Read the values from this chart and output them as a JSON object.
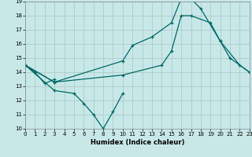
{
  "xlabel": "Humidex (Indice chaleur)",
  "background_color": "#c8e8e8",
  "grid_color": "#b0d0d0",
  "line_color": "#006868",
  "xlim": [
    0,
    23
  ],
  "ylim": [
    10,
    19
  ],
  "yticks": [
    10,
    11,
    12,
    13,
    14,
    15,
    16,
    17,
    18,
    19
  ],
  "xticks": [
    0,
    1,
    2,
    3,
    4,
    5,
    6,
    7,
    8,
    9,
    10,
    11,
    12,
    13,
    14,
    15,
    16,
    17,
    18,
    19,
    20,
    21,
    22,
    23
  ],
  "series": [
    {
      "x": [
        0,
        1,
        2,
        3
      ],
      "y": [
        14.5,
        14.0,
        13.2,
        13.5
      ]
    },
    {
      "x": [
        0,
        3,
        5,
        6,
        7,
        8,
        9,
        10
      ],
      "y": [
        14.5,
        12.7,
        12.5,
        11.8,
        11.0,
        10.0,
        11.2,
        12.5
      ]
    },
    {
      "x": [
        0,
        3,
        10,
        11,
        13,
        15,
        16,
        17,
        18,
        20,
        21,
        23
      ],
      "y": [
        14.5,
        13.3,
        14.8,
        15.9,
        16.5,
        17.5,
        19.2,
        19.2,
        18.5,
        16.2,
        15.0,
        14.0
      ]
    },
    {
      "x": [
        0,
        3,
        10,
        14,
        15,
        16,
        17,
        19,
        20,
        22,
        23
      ],
      "y": [
        14.5,
        13.3,
        13.8,
        14.5,
        15.5,
        18.0,
        18.0,
        17.5,
        16.2,
        14.5,
        14.0
      ]
    }
  ]
}
